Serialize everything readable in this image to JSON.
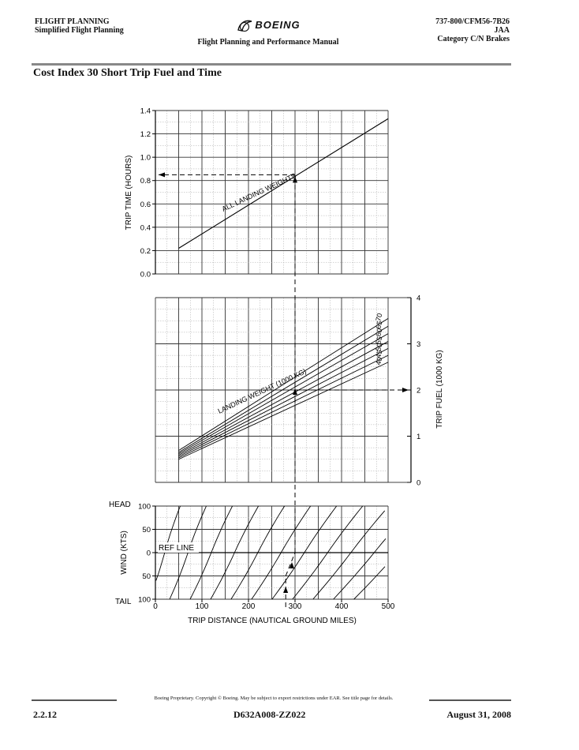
{
  "header": {
    "left_line1": "FLIGHT PLANNING",
    "left_line2": "Simplified Flight Planning",
    "logo_text": "BOEING",
    "manual_title": "Flight Planning and Performance Manual",
    "right_line1": "737-800/CFM56-7B26",
    "right_line2": "JAA",
    "right_line3": "Category C/N Brakes"
  },
  "page_title": "Cost Index 30 Short Trip Fuel and Time",
  "chart_labels": {
    "trip_time_axis": "TRIP TIME   (HOURS)",
    "trip_fuel_axis": "TRIP FUEL   (1000 KG)",
    "wind_axis": "WIND   (KTS)",
    "head": "HEAD",
    "tail": "TAIL",
    "ref_line": "REF LINE",
    "x_axis": "TRIP DISTANCE   (NAUTICAL GROUND MILES)",
    "all_landing_weights": "ALL LANDING WEIGHTS",
    "landing_weight": "LANDING WEIGHT (1000 KG)"
  },
  "chart_data": {
    "type": "line",
    "x_range": [
      0,
      500
    ],
    "x_ticks": [
      "0",
      "100",
      "200",
      "300",
      "400",
      "500"
    ],
    "time_panel": {
      "y_range": [
        0,
        1.4
      ],
      "y_ticks": [
        "0.0",
        "0.2",
        "0.4",
        "0.6",
        "0.8",
        "1.0",
        "1.2",
        "1.4"
      ],
      "series": [
        {
          "name": "ALL LANDING WEIGHTS",
          "x": [
            50,
            500
          ],
          "y": [
            0.22,
            1.33
          ]
        }
      ],
      "example_reading": {
        "x": 300,
        "y": 0.85
      }
    },
    "fuel_panel": {
      "y_range": [
        0,
        4
      ],
      "y_ticks": [
        "0",
        "1",
        "2",
        "3",
        "4"
      ],
      "series": [
        {
          "name": "40",
          "x": [
            50,
            500
          ],
          "y": [
            0.5,
            2.6
          ]
        },
        {
          "name": "45",
          "x": [
            50,
            500
          ],
          "y": [
            0.53,
            2.75
          ]
        },
        {
          "name": "50",
          "x": [
            50,
            500
          ],
          "y": [
            0.56,
            2.9
          ]
        },
        {
          "name": "55",
          "x": [
            50,
            500
          ],
          "y": [
            0.59,
            3.05
          ]
        },
        {
          "name": "60",
          "x": [
            50,
            500
          ],
          "y": [
            0.62,
            3.22
          ]
        },
        {
          "name": "65",
          "x": [
            50,
            500
          ],
          "y": [
            0.65,
            3.38
          ]
        },
        {
          "name": "70",
          "x": [
            50,
            500
          ],
          "y": [
            0.69,
            3.55
          ]
        }
      ],
      "example_reading": {
        "x": 300,
        "y": 2.0
      }
    },
    "wind_panel": {
      "y_ticks": [
        "100",
        "50",
        "0",
        "50",
        "100"
      ],
      "y_range": [
        -100,
        100
      ],
      "example_reading": {
        "distance": 280,
        "wind": -50,
        "corrected_distance": 300
      }
    }
  },
  "footer": {
    "page_number": "2.2.12",
    "note": "Boeing Proprietary.  Copyright © Boeing.  May be subject to export restrictions under EAR.  See title page for details.",
    "doc_number": "D632A008-ZZ022",
    "date": "August 31, 2008"
  }
}
